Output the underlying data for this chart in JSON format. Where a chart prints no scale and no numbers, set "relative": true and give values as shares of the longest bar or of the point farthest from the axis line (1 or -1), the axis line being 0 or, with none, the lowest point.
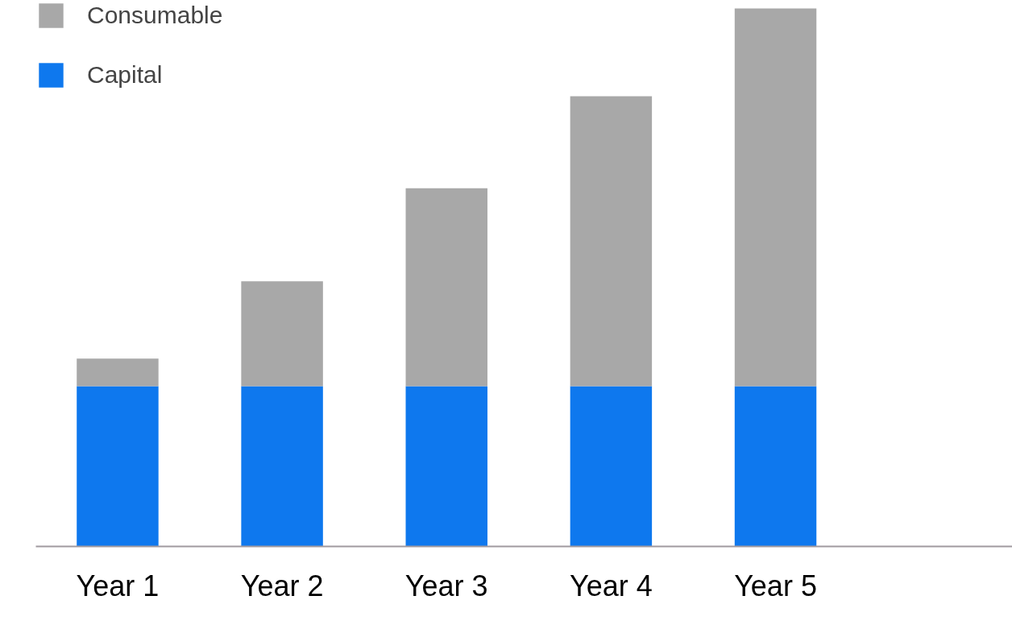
{
  "chart_data": {
    "type": "bar",
    "stacked": true,
    "relative": true,
    "categories": [
      "Year 1",
      "Year 2",
      "Year 3",
      "Year 4",
      "Year 5"
    ],
    "series": [
      {
        "name": "Capital",
        "color": "#0e78ee",
        "values": [
          0.298,
          0.298,
          0.298,
          0.298,
          0.298
        ]
      },
      {
        "name": "Consumable",
        "color": "#a8a8a8",
        "values": [
          0.051,
          0.195,
          0.368,
          0.539,
          0.702
        ]
      }
    ],
    "legend": "top left",
    "grid": false
  }
}
